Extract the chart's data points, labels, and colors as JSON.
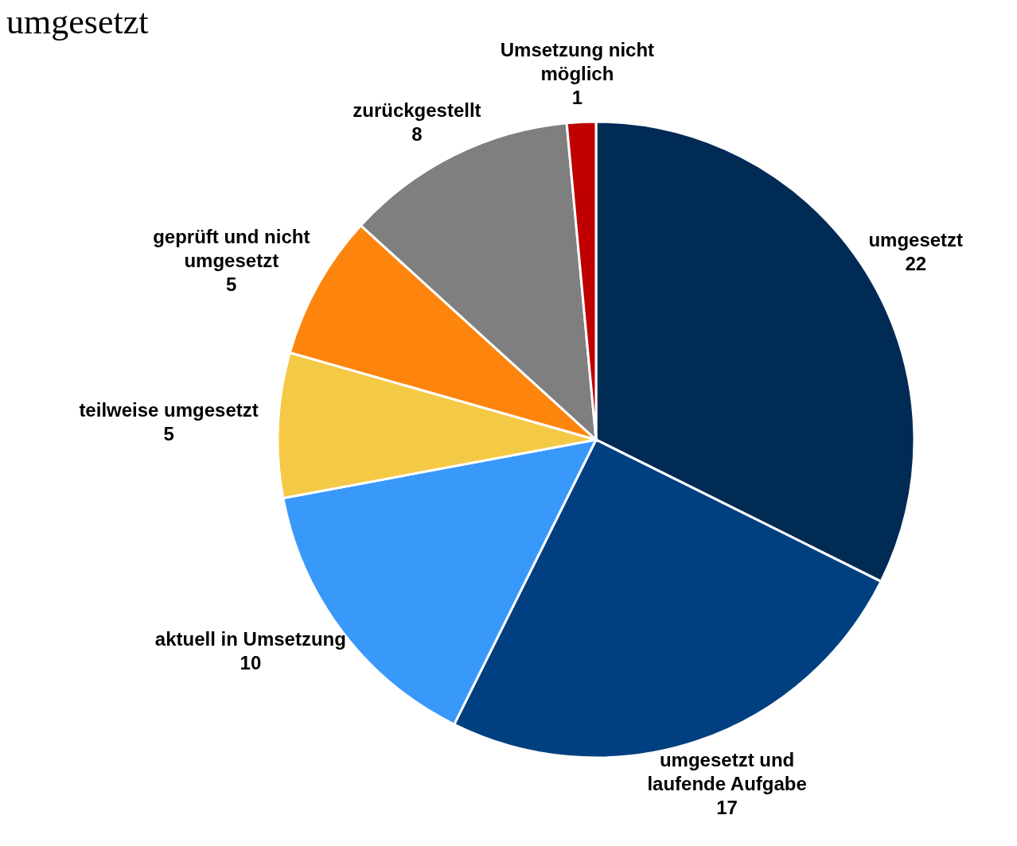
{
  "chart_data": {
    "type": "pie",
    "title": "umgesetzt",
    "categories": [
      "umgesetzt",
      "umgesetzt und laufende Aufgabe",
      "aktuell in Umsetzung",
      "teilweise umgesetzt",
      "geprüft und nicht umgesetzt",
      "zurückgestellt",
      "Umsetzung nicht möglich"
    ],
    "values": [
      22,
      17,
      10,
      5,
      5,
      8,
      1
    ],
    "colors": [
      "#002b55",
      "#003f80",
      "#3899fb",
      "#f4c945",
      "#fd850e",
      "#7f7f7f",
      "#c00000"
    ],
    "data_labels": true
  }
}
